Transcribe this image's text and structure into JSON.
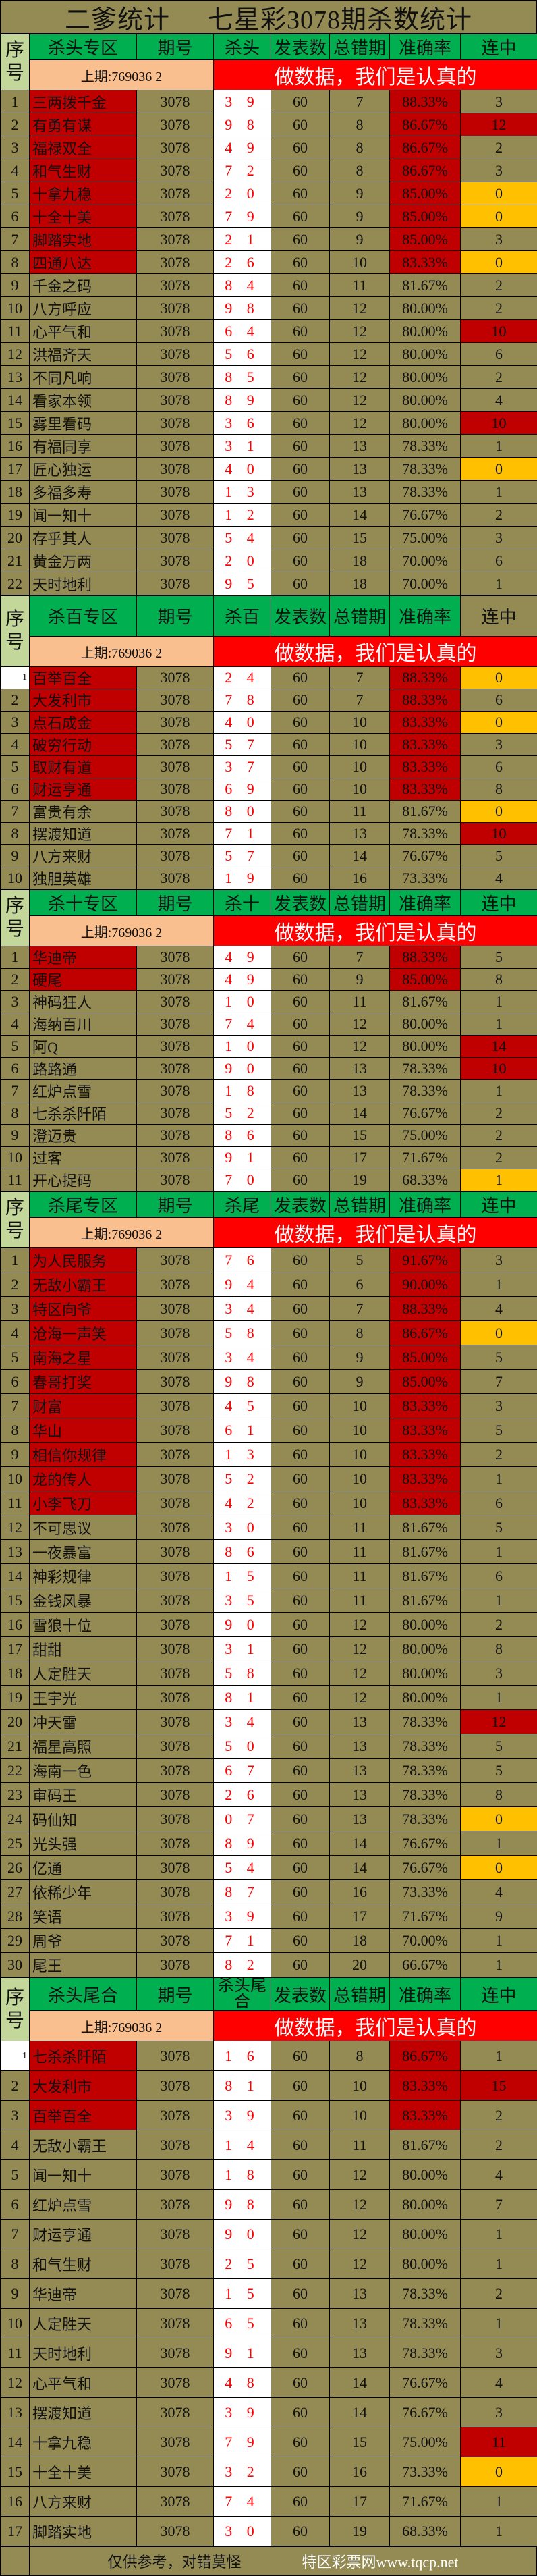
{
  "title": {
    "left": "二爹统计",
    "right": "七星彩3078期杀数统计"
  },
  "colors": {
    "olive": "#948A54",
    "green": "#00B050",
    "seq_green": "#C4D79B",
    "peach": "#FABF8F",
    "banner_red": "#FF0000",
    "dark_red": "#C00000",
    "yellow": "#FFC000"
  },
  "sections": [
    {
      "headers": [
        "序号",
        "杀头专区",
        "期号",
        "杀头",
        "发表数",
        "总错期",
        "准确率",
        "连中"
      ],
      "last_draw": "上期:769036 2",
      "banner": "做数据，我们是认真的",
      "rows": [
        [
          "1",
          "三两拨千金",
          "3078",
          "3 9",
          "60",
          "7",
          "88.33%",
          "3",
          true,
          null
        ],
        [
          "2",
          "有勇有谋",
          "3078",
          "9 8",
          "60",
          "8",
          "86.67%",
          "12",
          true,
          "red"
        ],
        [
          "3",
          "福禄双全",
          "3078",
          "4 9",
          "60",
          "8",
          "86.67%",
          "2",
          true,
          null
        ],
        [
          "4",
          "和气生财",
          "3078",
          "7 2",
          "60",
          "8",
          "86.67%",
          "3",
          true,
          null
        ],
        [
          "5",
          "十拿九稳",
          "3078",
          "2 0",
          "60",
          "9",
          "85.00%",
          "0",
          true,
          "yellow"
        ],
        [
          "6",
          "十全十美",
          "3078",
          "7 9",
          "60",
          "9",
          "85.00%",
          "0",
          true,
          "yellow"
        ],
        [
          "7",
          "脚踏实地",
          "3078",
          "2 1",
          "60",
          "9",
          "85.00%",
          "3",
          true,
          null
        ],
        [
          "8",
          "四通八达",
          "3078",
          "2 6",
          "60",
          "10",
          "83.33%",
          "0",
          true,
          "yellow"
        ],
        [
          "9",
          "千金之码",
          "3078",
          "8 4",
          "60",
          "11",
          "81.67%",
          "2",
          false,
          null
        ],
        [
          "10",
          "八方呼应",
          "3078",
          "9 8",
          "60",
          "12",
          "80.00%",
          "2",
          false,
          null
        ],
        [
          "11",
          "心平气和",
          "3078",
          "6 4",
          "60",
          "12",
          "80.00%",
          "10",
          false,
          "red"
        ],
        [
          "12",
          "洪福齐天",
          "3078",
          "5 6",
          "60",
          "12",
          "80.00%",
          "6",
          false,
          null
        ],
        [
          "13",
          "不同凡响",
          "3078",
          "8 5",
          "60",
          "12",
          "80.00%",
          "2",
          false,
          null
        ],
        [
          "14",
          "看家本领",
          "3078",
          "8 9",
          "60",
          "12",
          "80.00%",
          "4",
          false,
          null
        ],
        [
          "15",
          "雾里看码",
          "3078",
          "3 6",
          "60",
          "12",
          "80.00%",
          "10",
          false,
          "red"
        ],
        [
          "16",
          "有福同享",
          "3078",
          "3 1",
          "60",
          "13",
          "78.33%",
          "1",
          false,
          null
        ],
        [
          "17",
          "匠心独运",
          "3078",
          "4 0",
          "60",
          "13",
          "78.33%",
          "0",
          false,
          "yellow"
        ],
        [
          "18",
          "多福多寿",
          "3078",
          "1 3",
          "60",
          "13",
          "78.33%",
          "1",
          false,
          null
        ],
        [
          "19",
          "闻一知十",
          "3078",
          "1 2",
          "60",
          "14",
          "76.67%",
          "2",
          false,
          null
        ],
        [
          "20",
          "存乎其人",
          "3078",
          "5 4",
          "60",
          "15",
          "75.00%",
          "3",
          false,
          null
        ],
        [
          "21",
          "黄金万两",
          "3078",
          "2 0",
          "60",
          "18",
          "70.00%",
          "6",
          false,
          null
        ],
        [
          "22",
          "天时地利",
          "3078",
          "9 5",
          "60",
          "18",
          "70.00%",
          "1",
          false,
          null
        ]
      ]
    },
    {
      "headers": [
        "序号",
        "杀百专区",
        "期号",
        "杀百",
        "发表数",
        "总错期",
        "准确率",
        "连中"
      ],
      "last_draw": "上期:769036 2",
      "banner": "做数据，我们是认真的",
      "rows": [
        [
          "1",
          "百举百全",
          "3078",
          "2 4",
          "60",
          "7",
          "88.33%",
          "0",
          true,
          "yellow"
        ],
        [
          "2",
          "大发利市",
          "3078",
          "7 8",
          "60",
          "7",
          "88.33%",
          "6",
          true,
          null
        ],
        [
          "3",
          "点石成金",
          "3078",
          "4 0",
          "60",
          "10",
          "83.33%",
          "0",
          true,
          "yellow"
        ],
        [
          "4",
          "破穷行动",
          "3078",
          "5 7",
          "60",
          "10",
          "83.33%",
          "3",
          true,
          null
        ],
        [
          "5",
          "取财有道",
          "3078",
          "3 7",
          "60",
          "10",
          "83.33%",
          "6",
          true,
          null
        ],
        [
          "6",
          "财运亨通",
          "3078",
          "6 9",
          "60",
          "10",
          "83.33%",
          "8",
          true,
          null
        ],
        [
          "7",
          "富贵有余",
          "3078",
          "8 0",
          "60",
          "11",
          "81.67%",
          "0",
          false,
          "yellow"
        ],
        [
          "8",
          "摆渡知道",
          "3078",
          "7 1",
          "60",
          "13",
          "78.33%",
          "10",
          false,
          "red"
        ],
        [
          "9",
          "八方来财",
          "3078",
          "5 7",
          "60",
          "14",
          "76.67%",
          "5",
          false,
          null
        ],
        [
          "10",
          "独胆英雄",
          "3078",
          "1 9",
          "60",
          "16",
          "73.33%",
          "4",
          false,
          null
        ]
      ]
    },
    {
      "headers": [
        "序号",
        "杀十专区",
        "期号",
        "杀十",
        "发表数",
        "总错期",
        "准确率",
        "连中"
      ],
      "last_draw": "上期:769036 2",
      "banner": "做数据，我们是认真的",
      "rows": [
        [
          "1",
          "华迪帝",
          "3078",
          "4 9",
          "60",
          "7",
          "88.33%",
          "5",
          true,
          null
        ],
        [
          "2",
          "硬尾",
          "3078",
          "4 9",
          "60",
          "9",
          "85.00%",
          "8",
          true,
          null
        ],
        [
          "3",
          "神码狂人",
          "3078",
          "1 0",
          "60",
          "11",
          "81.67%",
          "1",
          false,
          null
        ],
        [
          "4",
          "海纳百川",
          "3078",
          "7 4",
          "60",
          "12",
          "80.00%",
          "1",
          false,
          null
        ],
        [
          "5",
          "阿Q",
          "3078",
          "1 0",
          "60",
          "12",
          "80.00%",
          "14",
          false,
          "red"
        ],
        [
          "6",
          "路路通",
          "3078",
          "9 0",
          "60",
          "13",
          "78.33%",
          "10",
          false,
          "red"
        ],
        [
          "7",
          "红炉点雪",
          "3078",
          "1 8",
          "60",
          "13",
          "78.33%",
          "1",
          false,
          null
        ],
        [
          "8",
          "七杀杀阡陌",
          "3078",
          "5 2",
          "60",
          "14",
          "76.67%",
          "2",
          false,
          null
        ],
        [
          "9",
          "澄迈贵",
          "3078",
          "8 6",
          "60",
          "15",
          "75.00%",
          "2",
          false,
          null
        ],
        [
          "10",
          "过客",
          "3078",
          "9 1",
          "60",
          "17",
          "71.67%",
          "2",
          false,
          null
        ],
        [
          "11",
          "开心捉码",
          "3078",
          "7 0",
          "60",
          "19",
          "68.33%",
          "1",
          false,
          "yellow"
        ]
      ]
    },
    {
      "headers": [
        "序号",
        "杀尾专区",
        "期号",
        "杀尾",
        "发表数",
        "总错期",
        "准确率",
        "连中"
      ],
      "last_draw": "上期:769036 2",
      "banner": "做数据，我们是认真的",
      "rows": [
        [
          "1",
          "为人民服务",
          "3078",
          "7 6",
          "60",
          "5",
          "91.67%",
          "3",
          true,
          null
        ],
        [
          "2",
          "无敌小霸王",
          "3078",
          "9 4",
          "60",
          "6",
          "90.00%",
          "1",
          true,
          null
        ],
        [
          "3",
          "特区向爷",
          "3078",
          "3 4",
          "60",
          "7",
          "88.33%",
          "4",
          true,
          null
        ],
        [
          "4",
          "沧海一声笑",
          "3078",
          "5 8",
          "60",
          "8",
          "86.67%",
          "0",
          true,
          "yellow"
        ],
        [
          "5",
          "南海之星",
          "3078",
          "3 4",
          "60",
          "9",
          "85.00%",
          "5",
          true,
          null
        ],
        [
          "6",
          "春哥打奖",
          "3078",
          "9 8",
          "60",
          "9",
          "85.00%",
          "7",
          true,
          null
        ],
        [
          "7",
          "财富",
          "3078",
          "4 5",
          "60",
          "10",
          "83.33%",
          "3",
          true,
          null
        ],
        [
          "8",
          "华山",
          "3078",
          "6 1",
          "60",
          "10",
          "83.33%",
          "5",
          true,
          null
        ],
        [
          "9",
          "相信你规律",
          "3078",
          "1 3",
          "60",
          "10",
          "83.33%",
          "2",
          true,
          null
        ],
        [
          "10",
          "龙的传人",
          "3078",
          "5 2",
          "60",
          "10",
          "83.33%",
          "1",
          true,
          null
        ],
        [
          "11",
          "小李飞刀",
          "3078",
          "4 2",
          "60",
          "10",
          "83.33%",
          "6",
          true,
          null
        ],
        [
          "12",
          "不可思议",
          "3078",
          "3 0",
          "60",
          "11",
          "81.67%",
          "5",
          false,
          null
        ],
        [
          "13",
          "一夜暴富",
          "3078",
          "8 6",
          "60",
          "11",
          "81.67%",
          "1",
          false,
          null
        ],
        [
          "14",
          "神彩规律",
          "3078",
          "1 5",
          "60",
          "11",
          "81.67%",
          "6",
          false,
          null
        ],
        [
          "15",
          "金钱风暴",
          "3078",
          "3 5",
          "60",
          "11",
          "81.67%",
          "1",
          false,
          null
        ],
        [
          "16",
          "雪狼十位",
          "3078",
          "9 0",
          "60",
          "12",
          "80.00%",
          "2",
          false,
          null
        ],
        [
          "17",
          "甜甜",
          "3078",
          "3 1",
          "60",
          "12",
          "80.00%",
          "8",
          false,
          null
        ],
        [
          "18",
          "人定胜天",
          "3078",
          "5 8",
          "60",
          "12",
          "80.00%",
          "3",
          false,
          null
        ],
        [
          "19",
          "王宇光",
          "3078",
          "8 1",
          "60",
          "12",
          "80.00%",
          "1",
          false,
          null
        ],
        [
          "20",
          "冲天雷",
          "3078",
          "3 4",
          "60",
          "13",
          "78.33%",
          "12",
          false,
          "red"
        ],
        [
          "21",
          "福星高照",
          "3078",
          "5 0",
          "60",
          "13",
          "78.33%",
          "5",
          false,
          null
        ],
        [
          "22",
          "海南一色",
          "3078",
          "6 7",
          "60",
          "13",
          "78.33%",
          "5",
          false,
          null
        ],
        [
          "23",
          "审码王",
          "3078",
          "2 6",
          "60",
          "13",
          "78.33%",
          "8",
          false,
          null
        ],
        [
          "24",
          "码仙知",
          "3078",
          "0 7",
          "60",
          "13",
          "78.33%",
          "0",
          false,
          "yellow"
        ],
        [
          "25",
          "光头强",
          "3078",
          "8 9",
          "60",
          "14",
          "76.67%",
          "1",
          false,
          null
        ],
        [
          "26",
          "亿通",
          "3078",
          "5 4",
          "60",
          "14",
          "76.67%",
          "0",
          false,
          "yellow"
        ],
        [
          "27",
          "依稀少年",
          "3078",
          "8 7",
          "60",
          "16",
          "73.33%",
          "4",
          false,
          null
        ],
        [
          "28",
          "笑语",
          "3078",
          "3 9",
          "60",
          "17",
          "71.67%",
          "9",
          false,
          null
        ],
        [
          "29",
          "周爷",
          "3078",
          "7 1",
          "60",
          "18",
          "70.00%",
          "1",
          false,
          null
        ],
        [
          "30",
          "尾王",
          "3078",
          "8 2",
          "60",
          "20",
          "66.67%",
          "1",
          false,
          null
        ]
      ]
    },
    {
      "headers": [
        "序号",
        "杀头尾合",
        "期号",
        "杀头尾合",
        "发表数",
        "总错期",
        "准确率",
        "连中"
      ],
      "last_draw": "上期:769036 2",
      "banner": "做数据，我们是认真的",
      "rows": [
        [
          "1",
          "七杀杀阡陌",
          "3078",
          "1 6",
          "60",
          "8",
          "86.67%",
          "1",
          true,
          null
        ],
        [
          "2",
          "大发利市",
          "3078",
          "8 1",
          "60",
          "10",
          "83.33%",
          "15",
          true,
          "red"
        ],
        [
          "3",
          "百举百全",
          "3078",
          "3 9",
          "60",
          "10",
          "83.33%",
          "2",
          true,
          null
        ],
        [
          "4",
          "无敌小霸王",
          "3078",
          "1 4",
          "60",
          "11",
          "81.67%",
          "2",
          false,
          null
        ],
        [
          "5",
          "闻一知十",
          "3078",
          "1 8",
          "60",
          "12",
          "80.00%",
          "4",
          false,
          null
        ],
        [
          "6",
          "红炉点雪",
          "3078",
          "9 8",
          "60",
          "12",
          "80.00%",
          "7",
          false,
          null
        ],
        [
          "7",
          "财运亨通",
          "3078",
          "9 0",
          "60",
          "12",
          "80.00%",
          "1",
          false,
          null
        ],
        [
          "8",
          "和气生财",
          "3078",
          "2 5",
          "60",
          "12",
          "80.00%",
          "1",
          false,
          null
        ],
        [
          "9",
          "华迪帝",
          "3078",
          "1 5",
          "60",
          "13",
          "78.33%",
          "2",
          false,
          null
        ],
        [
          "10",
          "人定胜天",
          "3078",
          "6 5",
          "60",
          "13",
          "78.33%",
          "1",
          false,
          null
        ],
        [
          "11",
          "天时地利",
          "3078",
          "9 1",
          "60",
          "13",
          "78.33%",
          "3",
          false,
          null
        ],
        [
          "12",
          "心平气和",
          "3078",
          "4 8",
          "60",
          "14",
          "76.67%",
          "4",
          false,
          null
        ],
        [
          "13",
          "摆渡知道",
          "3078",
          "3 9",
          "60",
          "14",
          "76.67%",
          "3",
          false,
          null
        ],
        [
          "14",
          "十拿九稳",
          "3078",
          "7 9",
          "60",
          "15",
          "75.00%",
          "11",
          false,
          "red"
        ],
        [
          "15",
          "十全十美",
          "3078",
          "3 2",
          "60",
          "16",
          "73.33%",
          "0",
          false,
          "yellow"
        ],
        [
          "16",
          "八方来财",
          "3078",
          "7 4",
          "60",
          "17",
          "71.67%",
          "1",
          false,
          null
        ],
        [
          "17",
          "脚踏实地",
          "3078",
          "3 0",
          "60",
          "19",
          "68.33%",
          "1",
          false,
          null
        ]
      ]
    }
  ],
  "footer": {
    "note": "仅供参考，对错莫怪",
    "site": "特区彩票网www.tqcp.net"
  }
}
